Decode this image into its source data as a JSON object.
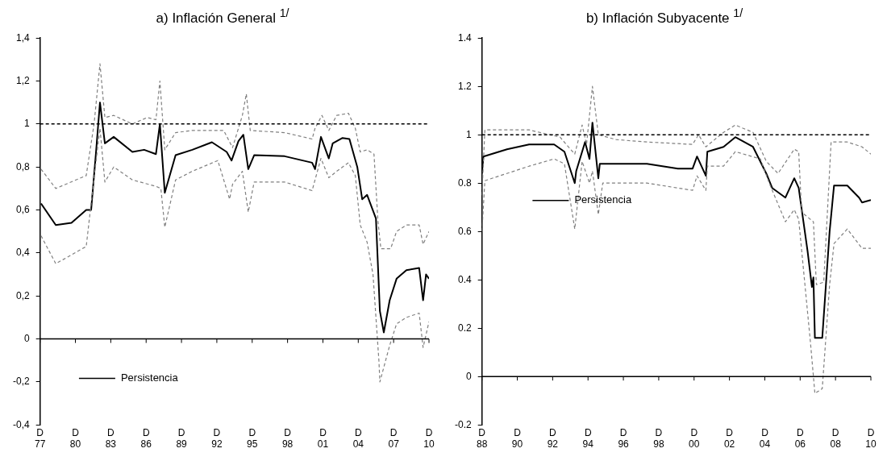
{
  "chart_data": [
    {
      "type": "line",
      "title": "a) Inflación General $^{1/}$",
      "legend": "bottom left",
      "marker": "none",
      "xlim": [
        "1977-12",
        "2010-12"
      ],
      "xticks": [
        {
          "value": "1977-12",
          "label": "D\n77"
        },
        {
          "value": "1980-12",
          "label": "D\n80"
        },
        {
          "value": "1983-12",
          "label": "D\n83"
        },
        {
          "value": "1986-12",
          "label": "D\n86"
        },
        {
          "value": "1989-12",
          "label": "D\n89"
        },
        {
          "value": "1992-12",
          "label": "D\n92"
        },
        {
          "value": "1995-12",
          "label": "D\n95"
        },
        {
          "value": "1998-12",
          "label": "D\n98"
        },
        {
          "value": "2001-12",
          "label": "D\n01"
        },
        {
          "value": "2004-12",
          "label": "D\n04"
        },
        {
          "value": "2007-12",
          "label": "D\n07"
        },
        {
          "value": "2010-12",
          "label": "D\n10"
        }
      ],
      "ylim": [
        -0.4,
        1.4
      ],
      "yticks": [
        {
          "value": -0.4,
          "label": "-0,4"
        },
        {
          "value": -0.2,
          "label": "-0,2"
        },
        {
          "value": 0,
          "label": "0"
        },
        {
          "value": 0.2,
          "label": "0,2"
        },
        {
          "value": 0.4,
          "label": "0,4"
        },
        {
          "value": 0.6,
          "label": "0,6"
        },
        {
          "value": 0.8,
          "label": "0,8"
        },
        {
          "value": 1,
          "label": "1"
        },
        {
          "value": 1.2,
          "label": "1,2"
        },
        {
          "value": 1.4,
          "label": "1,4"
        }
      ],
      "ref_lines": [
        {
          "axis": "y",
          "value": 1,
          "color": "#000000",
          "line_style": "dashed"
        }
      ],
      "series": [
        {
          "color": "#808080",
          "line_style": "dashed",
          "x": [
            "1978-01",
            "1979-04",
            "1981-11",
            "1982-07",
            "1983-01",
            "1983-06",
            "1984-03",
            "1985-10",
            "1987-01",
            "1987-10",
            "1988-02",
            "1988-07",
            "1989-06",
            "1990-11",
            "1993-07",
            "1994-04",
            "1995-02",
            "1995-06",
            "1995-10",
            "1998-09",
            "2001-01",
            "2001-04",
            "2001-11",
            "2002-06",
            "2003-02",
            "2004-02",
            "2004-09",
            "2005-02",
            "2005-09",
            "2006-04",
            "2006-08",
            "2006-11",
            "2007-09",
            "2008-03",
            "2009-01",
            "2010-02",
            "2010-06",
            "2010-12"
          ],
          "values": [
            0.79,
            0.7,
            0.76,
            1.0,
            1.28,
            1.03,
            1.04,
            1.0,
            1.03,
            1.02,
            1.2,
            0.88,
            0.96,
            0.97,
            0.97,
            0.89,
            1.04,
            1.14,
            0.97,
            0.96,
            0.93,
            0.98,
            1.04,
            0.97,
            1.04,
            1.05,
            0.98,
            0.87,
            0.88,
            0.86,
            0.55,
            0.42,
            0.42,
            0.5,
            0.53,
            0.53,
            0.44,
            0.5
          ]
        },
        {
          "color": "#808080",
          "line_style": "dashed",
          "x": [
            "1978-01",
            "1979-04",
            "1981-11",
            "1982-07",
            "1983-01",
            "1983-06",
            "1984-03",
            "1985-10",
            "1987-10",
            "1988-03",
            "1988-07",
            "1989-06",
            "1990-11",
            "1993-01",
            "1994-01",
            "1994-04",
            "1995-02",
            "1995-08",
            "1996-02",
            "1998-09",
            "2001-01",
            "2001-04",
            "2001-10",
            "2002-06",
            "2003-02",
            "2004-02",
            "2004-09",
            "2005-02",
            "2005-09",
            "2006-03",
            "2006-09",
            "2006-10",
            "2007-08",
            "2008-03",
            "2009-01",
            "2010-02",
            "2010-06",
            "2010-12"
          ],
          "values": [
            0.48,
            0.35,
            0.43,
            0.75,
            0.98,
            0.73,
            0.8,
            0.74,
            0.71,
            0.7,
            0.52,
            0.74,
            0.78,
            0.83,
            0.65,
            0.72,
            0.78,
            0.59,
            0.73,
            0.73,
            0.69,
            0.74,
            0.84,
            0.75,
            0.78,
            0.82,
            0.76,
            0.53,
            0.45,
            0.3,
            -0.1,
            -0.2,
            -0.03,
            0.07,
            0.1,
            0.12,
            -0.04,
            0.08
          ]
        },
        {
          "name": "Persistencia",
          "color": "#000000",
          "line_style": "solid",
          "x": [
            "1978-01",
            "1979-04",
            "1980-08",
            "1981-11",
            "1982-04",
            "1982-09",
            "1983-01",
            "1983-06",
            "1984-03",
            "1985-10",
            "1986-10",
            "1987-10",
            "1988-02",
            "1988-07",
            "1989-06",
            "1990-11",
            "1992-07",
            "1993-10",
            "1994-03",
            "1994-10",
            "1995-03",
            "1995-08",
            "1996-02",
            "1998-09",
            "2001-01",
            "2001-04",
            "2001-10",
            "2002-06",
            "2002-10",
            "2003-08",
            "2004-03",
            "2004-11",
            "2005-04",
            "2005-09",
            "2006-06",
            "2006-10",
            "2007-02",
            "2007-08",
            "2008-03",
            "2009-01",
            "2010-02",
            "2010-06",
            "2010-09",
            "2010-12"
          ],
          "values": [
            0.63,
            0.53,
            0.54,
            0.6,
            0.6,
            0.87,
            1.1,
            0.91,
            0.94,
            0.87,
            0.88,
            0.86,
            1.0,
            0.68,
            0.855,
            0.88,
            0.915,
            0.87,
            0.83,
            0.92,
            0.95,
            0.79,
            0.855,
            0.85,
            0.82,
            0.79,
            0.94,
            0.84,
            0.91,
            0.935,
            0.93,
            0.8,
            0.65,
            0.67,
            0.56,
            0.13,
            0.03,
            0.18,
            0.28,
            0.32,
            0.33,
            0.18,
            0.3,
            0.28
          ]
        }
      ]
    },
    {
      "type": "line",
      "title": "b) Inflación Subyacente $^{1/}$",
      "legend": "left",
      "marker": "none",
      "xlim": [
        "1988-12",
        "2010-12"
      ],
      "xticks": [
        {
          "value": "1988-12",
          "label": "D\n88"
        },
        {
          "value": "1990-12",
          "label": "D\n90"
        },
        {
          "value": "1992-12",
          "label": "D\n92"
        },
        {
          "value": "1994-12",
          "label": "D\n94"
        },
        {
          "value": "1996-12",
          "label": "D\n96"
        },
        {
          "value": "1998-12",
          "label": "D\n98"
        },
        {
          "value": "2000-12",
          "label": "D\n00"
        },
        {
          "value": "2002-12",
          "label": "D\n02"
        },
        {
          "value": "2004-12",
          "label": "D\n04"
        },
        {
          "value": "2006-12",
          "label": "D\n06"
        },
        {
          "value": "2008-12",
          "label": "D\n08"
        },
        {
          "value": "2010-12",
          "label": "D\n10"
        }
      ],
      "ylim": [
        -0.2,
        1.4
      ],
      "yticks": [
        {
          "value": -0.2,
          "label": "-0.2"
        },
        {
          "value": 0,
          "label": "0"
        },
        {
          "value": 0.2,
          "label": "0.2"
        },
        {
          "value": 0.4,
          "label": "0.4"
        },
        {
          "value": 0.6,
          "label": "0.6"
        },
        {
          "value": 0.8,
          "label": "0.8"
        },
        {
          "value": 1,
          "label": "1"
        },
        {
          "value": 1.2,
          "label": "1.2"
        },
        {
          "value": 1.4,
          "label": "1.4"
        }
      ],
      "ref_lines": [
        {
          "axis": "y",
          "value": 1,
          "color": "#000000",
          "line_style": "dashed"
        }
      ],
      "series": [
        {
          "color": "#808080",
          "line_style": "dashed",
          "x": [
            "1988-12",
            "1989-02",
            "1991-08",
            "1993-05",
            "1994-03",
            "1994-08",
            "1994-11",
            "1995-03",
            "1995-07",
            "1996-07",
            "1998-04",
            "2000-11",
            "2001-03",
            "2001-08",
            "2002-08",
            "2003-04",
            "2004-04",
            "2005-01",
            "2005-09",
            "2006-08",
            "2006-11",
            "2007-01",
            "2007-09",
            "2007-11",
            "2008-04",
            "2008-09",
            "2009-08",
            "2010-06",
            "2010-12"
          ],
          "values": [
            0.75,
            1.02,
            1.02,
            0.99,
            0.92,
            1.04,
            0.96,
            1.2,
            1.0,
            0.98,
            0.97,
            0.96,
            1.0,
            0.95,
            1.01,
            1.04,
            1.01,
            0.89,
            0.84,
            0.94,
            0.93,
            0.68,
            0.64,
            0.38,
            0.39,
            0.97,
            0.97,
            0.95,
            0.92
          ]
        },
        {
          "color": "#808080",
          "line_style": "dashed",
          "x": [
            "1988-12",
            "1989-02",
            "1991-08",
            "1993-01",
            "1993-08",
            "1994-03",
            "1994-08",
            "1995-01",
            "1995-03",
            "1995-07",
            "1995-10",
            "1998-04",
            "2000-11",
            "2001-02",
            "2001-08",
            "2001-09",
            "2002-08",
            "2003-04",
            "2004-09",
            "2005-03",
            "2006-02",
            "2006-08",
            "2006-11",
            "2007-07",
            "2007-10",
            "2008-03",
            "2008-08",
            "2008-11",
            "2009-08",
            "2010-06",
            "2010-12"
          ],
          "values": [
            0.6,
            0.81,
            0.87,
            0.9,
            0.88,
            0.61,
            0.89,
            0.8,
            0.85,
            0.67,
            0.8,
            0.8,
            0.77,
            0.83,
            0.77,
            0.87,
            0.87,
            0.93,
            0.9,
            0.8,
            0.64,
            0.69,
            0.65,
            0.14,
            -0.07,
            -0.05,
            0.38,
            0.55,
            0.61,
            0.53,
            0.53
          ]
        },
        {
          "name": "Persistencia",
          "color": "#000000",
          "line_style": "solid",
          "x": [
            "1988-12",
            "1989-01",
            "1990-05",
            "1991-08",
            "1993-01",
            "1993-08",
            "1994-03",
            "1994-04",
            "1994-10",
            "1995-01",
            "1995-03",
            "1995-07",
            "1995-08",
            "1996-07",
            "1998-04",
            "2000-01",
            "2000-11",
            "2001-02",
            "2001-08",
            "2001-09",
            "2002-08",
            "2003-04",
            "2004-04",
            "2005-01",
            "2005-05",
            "2006-02",
            "2006-08",
            "2006-11",
            "2007-05",
            "2007-08",
            "2007-09",
            "2007-10",
            "2008-03",
            "2008-08",
            "2008-11",
            "2009-08",
            "2010-04",
            "2010-06",
            "2010-12"
          ],
          "values": [
            0.84,
            0.91,
            0.94,
            0.96,
            0.96,
            0.93,
            0.8,
            0.85,
            0.97,
            0.9,
            1.05,
            0.82,
            0.88,
            0.88,
            0.88,
            0.86,
            0.86,
            0.91,
            0.83,
            0.93,
            0.95,
            0.99,
            0.95,
            0.84,
            0.78,
            0.74,
            0.82,
            0.78,
            0.52,
            0.37,
            0.41,
            0.16,
            0.16,
            0.6,
            0.79,
            0.79,
            0.74,
            0.72,
            0.73
          ]
        }
      ]
    }
  ]
}
